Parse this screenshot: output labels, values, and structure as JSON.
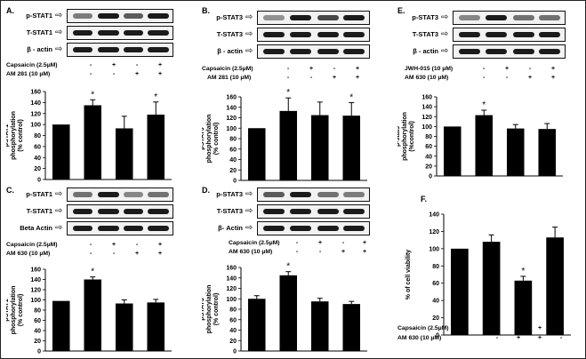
{
  "panels": [
    {
      "id": "A",
      "label": "A.",
      "blots": [
        "p-STAT1",
        "T-STAT1",
        "β - actin"
      ],
      "conditions": [
        {
          "name": "Capsaicin (2.5µM)",
          "signs": [
            "-",
            "+",
            "-",
            "+"
          ]
        },
        {
          "name": "AM 281 (10 µM)",
          "signs": [
            "-",
            "-",
            "+",
            "+"
          ]
        }
      ]
    },
    {
      "id": "B",
      "label": "B.",
      "blots": [
        "p-STAT3",
        "T-STAT3",
        "β - actin"
      ],
      "conditions": [
        {
          "name": "Capsaicin (2.5µM)",
          "signs": [
            "-",
            "+",
            "-",
            "+"
          ]
        },
        {
          "name": "AM 281 (10 µM)",
          "signs": [
            "-",
            "-",
            "+",
            "+"
          ]
        }
      ]
    },
    {
      "id": "E",
      "label": "E.",
      "blots": [
        "p-STAT3",
        "T-STAT3",
        "β - actin"
      ],
      "conditions": [
        {
          "name": "JWH-015 (10 µM)",
          "signs": [
            "-",
            "+",
            "-",
            "+"
          ]
        },
        {
          "name": "AM 630 (10 µM)",
          "signs": [
            "-",
            "-",
            "+",
            "+"
          ]
        }
      ]
    },
    {
      "id": "C",
      "label": "C.",
      "blots": [
        "p-STAT1",
        "T-STAT1",
        "Beta Actin"
      ],
      "conditions": [
        {
          "name": "Capsaicin (2.5µM)",
          "signs": [
            "-",
            "+",
            "-",
            "+"
          ]
        },
        {
          "name": "AM 630 (10 µM)",
          "signs": [
            "-",
            "-",
            "+",
            "+"
          ]
        }
      ]
    },
    {
      "id": "D",
      "label": "D.",
      "blots": [
        "p-STAT3",
        "T-STAT3",
        "β- Actin"
      ],
      "conditions": [
        {
          "name": "Capsaicin (2.5µM)",
          "signs": [
            "-",
            "+",
            "-",
            "+"
          ]
        },
        {
          "name": "AM 630 (10 µM)",
          "signs": [
            "-",
            "-",
            "+",
            "+"
          ]
        }
      ]
    },
    {
      "id": "F",
      "label": "F.",
      "blots": [],
      "conditions": [
        {
          "name": "Capsaicin (2.5µM)",
          "signs": [
            "-",
            "-",
            "+",
            "+"
          ]
        },
        {
          "name": "AM 630 (10 µM)",
          "signs": [
            "-",
            "+",
            "+",
            "-"
          ]
        }
      ]
    }
  ],
  "chart_data": [
    {
      "panel": "A",
      "type": "bar",
      "ylabel": "pSTAT1 phosphorylation (% control)",
      "ylim": [
        0,
        160
      ],
      "yticks": [
        0,
        20,
        40,
        60,
        80,
        100,
        120,
        140,
        160
      ],
      "values": [
        100,
        135,
        93,
        118
      ],
      "errors": [
        0,
        10,
        22,
        23
      ],
      "significance": [
        "",
        "*",
        "",
        "*"
      ]
    },
    {
      "panel": "B",
      "type": "bar",
      "ylabel": "pSTAT3 phosphorylation (% control)",
      "ylim": [
        0,
        160
      ],
      "yticks": [
        0,
        20,
        40,
        60,
        80,
        100,
        120,
        140,
        160
      ],
      "values": [
        100,
        133,
        125,
        124
      ],
      "errors": [
        0,
        25,
        25,
        25
      ],
      "significance": [
        "",
        "*",
        "",
        "*"
      ]
    },
    {
      "panel": "E",
      "type": "bar",
      "ylabel": "p-stat3 phosphorylation (%control)",
      "ylim": [
        0,
        160
      ],
      "yticks": [
        0,
        20,
        40,
        60,
        80,
        100,
        120,
        140,
        160
      ],
      "values": [
        100,
        123,
        96,
        95
      ],
      "errors": [
        0,
        10,
        8,
        11
      ],
      "significance": [
        "",
        "*",
        "",
        ""
      ]
    },
    {
      "panel": "C",
      "type": "bar",
      "ylabel": "pSTAT1 phosphorylation (% control)",
      "ylim": [
        0,
        160
      ],
      "yticks": [
        0,
        20,
        40,
        60,
        80,
        100,
        120,
        140,
        160
      ],
      "values": [
        98,
        140,
        93,
        95
      ],
      "errors": [
        0,
        5,
        7,
        6
      ],
      "significance": [
        "",
        "*",
        "",
        ""
      ]
    },
    {
      "panel": "D",
      "type": "bar",
      "ylabel": "pSTAT3 phosphorylation (% control)",
      "ylim": [
        0,
        160
      ],
      "yticks": [
        0,
        20,
        40,
        60,
        80,
        100,
        120,
        140,
        160
      ],
      "values": [
        100,
        145,
        95,
        90
      ],
      "errors": [
        6,
        7,
        6,
        5
      ],
      "significance": [
        "",
        "*",
        "",
        ""
      ]
    },
    {
      "panel": "F",
      "type": "bar",
      "ylabel": "% of cell viability",
      "ylim": [
        0,
        140
      ],
      "yticks": [
        0,
        20,
        40,
        60,
        80,
        100,
        120,
        140
      ],
      "values": [
        100,
        108,
        63,
        113
      ],
      "errors": [
        0,
        8,
        5,
        12
      ],
      "significance": [
        "",
        "",
        "*",
        ""
      ]
    }
  ]
}
